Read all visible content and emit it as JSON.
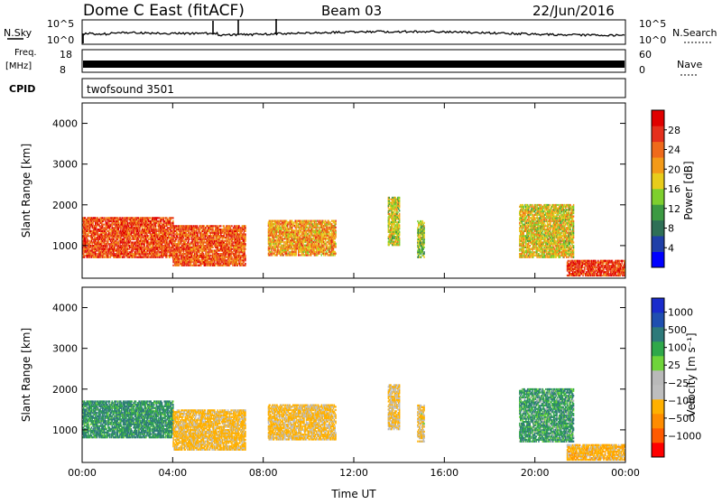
{
  "header": {
    "station": "Dome C East (fitACF)",
    "beam": "Beam 03",
    "date": "22/Jun/2016"
  },
  "sky_panel": {
    "left_label": "N.Sky",
    "left_top": "10^5",
    "left_bottom": "10^0",
    "right_top": "10^5",
    "right_bottom": "10^0",
    "right_label": "N.Search"
  },
  "freq_panel": {
    "left_label_line1": "Freq.",
    "left_label_line2": "[MHz]",
    "left_top": "18",
    "left_bottom": "8",
    "right_top": "60",
    "right_bottom": "0",
    "right_label": "Nave"
  },
  "cpid_panel": {
    "label": "CPID",
    "value": "twofsound 3501"
  },
  "colors": {
    "axis": "#000000",
    "power_scale": [
      "#0000ff",
      "#1f3fa8",
      "#2e6f56",
      "#3c9a42",
      "#7ecf2e",
      "#e8cc1b",
      "#f39a18",
      "#ef6a1b",
      "#e5301d",
      "#e00000"
    ],
    "velocity_scale": [
      "#ff0000",
      "#ff5a00",
      "#ff8c00",
      "#ffb000",
      "#bebebe",
      "#b9b9b9",
      "#6fd43a",
      "#2fa84a",
      "#2e7a7a",
      "#1f4fb0",
      "#1a2ccc"
    ]
  },
  "chart_data": [
    {
      "type": "heatmap",
      "name": "power",
      "ylabel": "Slant Range [km]",
      "xlabel": "",
      "ylim": [
        200,
        4500
      ],
      "xlim": [
        0,
        24
      ],
      "yticks": [
        "1000",
        "2000",
        "3000",
        "4000"
      ],
      "xticks": [
        "00:00",
        "04:00",
        "08:00",
        "12:00",
        "16:00",
        "20:00",
        "00:00"
      ],
      "colorbar": {
        "label": "Power [dB]",
        "ticks": [
          "4",
          "8",
          "12",
          "16",
          "20",
          "24",
          "28"
        ],
        "range": [
          0,
          32
        ]
      },
      "echo_regions": [
        {
          "t0": 0.0,
          "t1": 4.0,
          "r0": 700,
          "r1": 1700,
          "value": 26
        },
        {
          "t0": 4.0,
          "t1": 7.2,
          "r0": 500,
          "r1": 1500,
          "value": 25
        },
        {
          "t0": 8.2,
          "t1": 11.2,
          "r0": 750,
          "r1": 1600,
          "value": 21
        },
        {
          "t0": 13.5,
          "t1": 14.0,
          "r0": 1000,
          "r1": 2200,
          "value": 17
        },
        {
          "t0": 14.8,
          "t1": 15.1,
          "r0": 700,
          "r1": 1600,
          "value": 14
        },
        {
          "t0": 19.3,
          "t1": 21.7,
          "r0": 700,
          "r1": 2000,
          "value": 18
        },
        {
          "t0": 21.4,
          "t1": 24.0,
          "r0": 250,
          "r1": 650,
          "value": 27
        }
      ]
    },
    {
      "type": "heatmap",
      "name": "velocity",
      "ylabel": "Slant Range [km]",
      "xlabel": "Time UT",
      "ylim": [
        200,
        4500
      ],
      "xlim": [
        0,
        24
      ],
      "yticks": [
        "1000",
        "2000",
        "3000",
        "4000"
      ],
      "xticks": [
        "00:00",
        "04:00",
        "08:00",
        "12:00",
        "16:00",
        "20:00",
        "00:00"
      ],
      "colorbar": {
        "label": "Velocity [m s⁻¹]",
        "ticks": [
          "1000",
          "500",
          "100",
          "25",
          "−25",
          "−100",
          "−500",
          "−1000"
        ]
      },
      "echo_regions": [
        {
          "t0": 0.0,
          "t1": 4.0,
          "r0": 800,
          "r1": 1700,
          "value": 120
        },
        {
          "t0": 4.0,
          "t1": 7.2,
          "r0": 500,
          "r1": 1500,
          "value": -200
        },
        {
          "t0": 8.2,
          "t1": 11.2,
          "r0": 750,
          "r1": 1600,
          "value": -150
        },
        {
          "t0": 13.5,
          "t1": 14.0,
          "r0": 1000,
          "r1": 2100,
          "value": -100
        },
        {
          "t0": 14.8,
          "t1": 15.1,
          "r0": 700,
          "r1": 1600,
          "value": -90
        },
        {
          "t0": 19.3,
          "t1": 21.7,
          "r0": 700,
          "r1": 2000,
          "value": 80
        },
        {
          "t0": 21.4,
          "t1": 24.0,
          "r0": 250,
          "r1": 650,
          "value": -300
        }
      ]
    }
  ]
}
